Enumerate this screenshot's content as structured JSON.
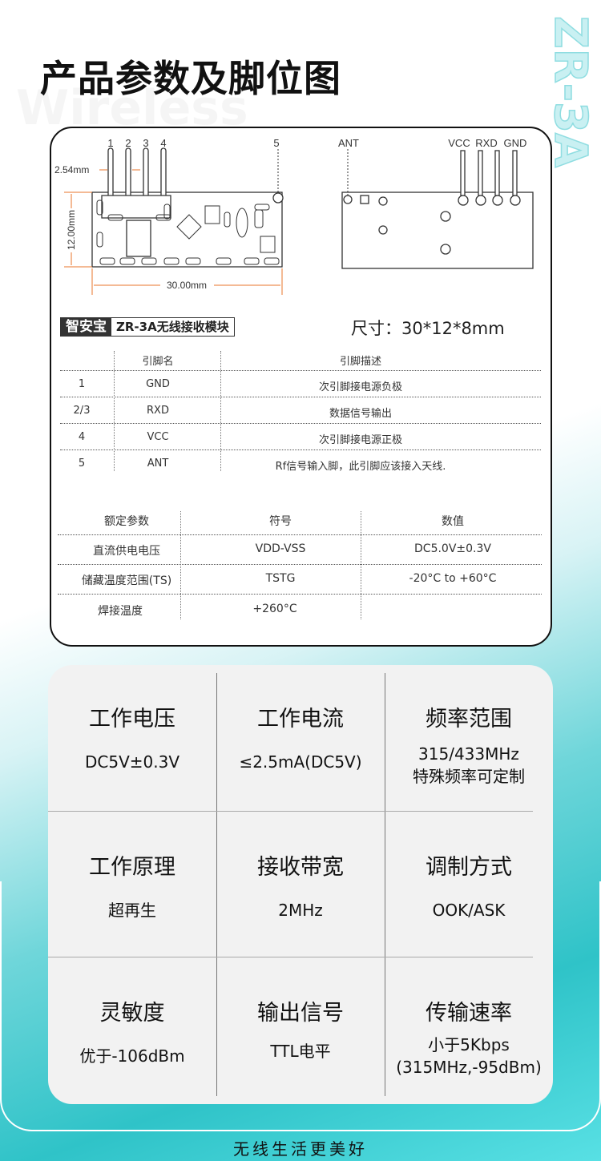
{
  "header": {
    "title": "产品参数及脚位图",
    "watermark": "Wireless",
    "side_text": "ZR-3A"
  },
  "diagram": {
    "front_pins": [
      "1",
      "2",
      "3",
      "4",
      "5"
    ],
    "pitch": "2.54mm",
    "height": "12.00mm",
    "width": "30.00mm",
    "back_pins": [
      "ANT",
      "VCC",
      "RXD",
      "GND"
    ],
    "accent_color": "#e8762b"
  },
  "brand": {
    "name": "智安宝",
    "product": "ZR-3A无线接收模块"
  },
  "size_label": "尺寸：30*12*8mm",
  "pin_table": {
    "headers": [
      "",
      "引脚名",
      "引脚描述"
    ],
    "rows": [
      [
        "1",
        "GND",
        "次引脚接电源负极"
      ],
      [
        "2/3",
        "RXD",
        "数据信号输出"
      ],
      [
        "4",
        "VCC",
        "次引脚接电源正极"
      ],
      [
        "5",
        "ANT",
        "Rf信号输入脚，此引脚应该接入天线."
      ]
    ]
  },
  "rating_table": {
    "headers": [
      "额定参数",
      "符号",
      "数值"
    ],
    "rows": [
      [
        "直流供电电压",
        "VDD-VSS",
        "DC5.0V±0.3V"
      ],
      [
        "储藏温度范围(TS)",
        "TSTG",
        "-20°C to +60°C"
      ],
      [
        "焊接温度",
        "+260°C",
        ""
      ]
    ]
  },
  "specs": [
    {
      "title": "工作电压",
      "value": "DC5V±0.3V"
    },
    {
      "title": "工作电流",
      "value": "≤2.5mA(DC5V)"
    },
    {
      "title": "频率范围",
      "value": "315/433MHz",
      "value2": "特殊频率可定制"
    },
    {
      "title": "工作原理",
      "value": "超再生"
    },
    {
      "title": "接收带宽",
      "value": "2MHz"
    },
    {
      "title": "调制方式",
      "value": "OOK/ASK"
    },
    {
      "title": "灵敏度",
      "value": "优于-106dBm"
    },
    {
      "title": "输出信号",
      "value": "TTL电平"
    },
    {
      "title": "传输速率",
      "value": "小于5Kbps",
      "value2": "(315MHz,-95dBm)"
    }
  ],
  "footer": "无线生活更美好"
}
